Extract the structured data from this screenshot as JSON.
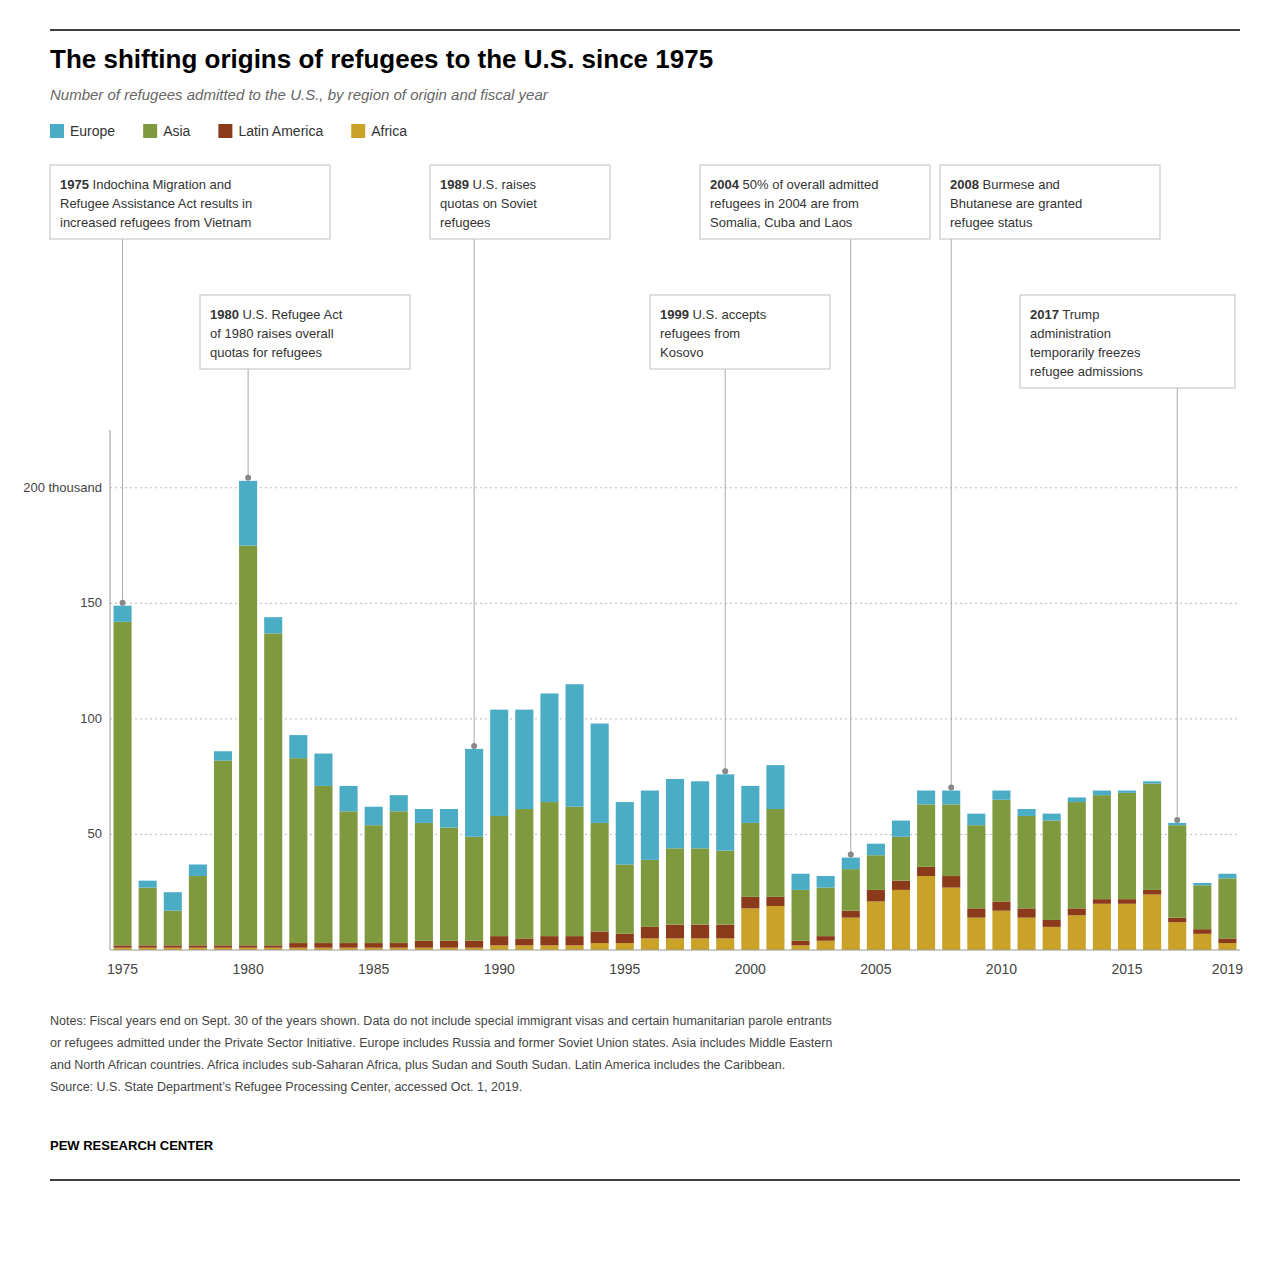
{
  "chart_data": {
    "type": "bar",
    "stacked": true,
    "grid": true,
    "legend": "top-left",
    "title": "The shifting origins of refugees to the U.S. since 1975",
    "subtitle": "Number of refugees admitted to the U.S., by region of origin and fiscal year",
    "categories": [
      "1975",
      null,
      null,
      null,
      null,
      "1980",
      null,
      null,
      null,
      null,
      "1985",
      null,
      null,
      null,
      null,
      "1990",
      null,
      null,
      null,
      null,
      "1995",
      null,
      null,
      null,
      null,
      "2000",
      null,
      null,
      null,
      null,
      "2005",
      null,
      null,
      null,
      null,
      "2010",
      null,
      null,
      null,
      null,
      "2015",
      null,
      null,
      null,
      "2019"
    ],
    "series": [
      {
        "name": "Africa",
        "color": "#C9A227",
        "values": [
          1,
          1,
          1,
          1,
          1,
          1,
          1,
          1,
          1,
          1,
          1,
          1,
          1,
          1,
          1,
          2,
          2,
          2,
          2,
          3,
          3,
          5,
          5,
          5,
          5,
          18,
          19,
          2,
          4,
          14,
          21,
          26,
          32,
          27,
          14,
          17,
          14,
          10,
          15,
          20,
          20,
          24,
          12,
          7,
          3
        ]
      },
      {
        "name": "Latin America",
        "color": "#8B3A1A",
        "values": [
          1,
          1,
          1,
          1,
          1,
          1,
          1,
          2,
          2,
          2,
          2,
          2,
          3,
          3,
          3,
          4,
          3,
          4,
          4,
          5,
          4,
          5,
          6,
          6,
          6,
          5,
          4,
          2,
          2,
          3,
          5,
          4,
          4,
          5,
          4,
          4,
          4,
          3,
          3,
          2,
          2,
          2,
          2,
          2,
          2
        ]
      },
      {
        "name": "Asia",
        "color": "#7F9A3E",
        "values": [
          140,
          25,
          15,
          30,
          80,
          173,
          135,
          80,
          68,
          57,
          51,
          57,
          51,
          49,
          45,
          52,
          56,
          58,
          56,
          47,
          30,
          29,
          33,
          33,
          32,
          32,
          38,
          22,
          21,
          18,
          15,
          19,
          27,
          31,
          36,
          44,
          40,
          43,
          46,
          45,
          46,
          46,
          40,
          19,
          26
        ]
      },
      {
        "name": "Europe",
        "color": "#4BACC6",
        "values": [
          7,
          3,
          8,
          5,
          4,
          28,
          7,
          10,
          14,
          11,
          8,
          7,
          6,
          8,
          38,
          46,
          43,
          47,
          53,
          43,
          27,
          30,
          30,
          29,
          33,
          16,
          19,
          7,
          5,
          5,
          5,
          7,
          6,
          6,
          5,
          4,
          3,
          3,
          2,
          2,
          1,
          1,
          1,
          1,
          2
        ]
      }
    ],
    "ylim": [
      0,
      225
    ],
    "yticks": [
      50,
      100,
      150,
      {
        "value": 200,
        "label": "200 thousand"
      }
    ],
    "annotations": [
      {
        "label": "1975",
        "text": " Indochina Migration and\nRefugee Assistance Act results in\nincreased refugees from Vietnam"
      },
      {
        "label": "1989",
        "text": " U.S. raises\nquotas on Soviet\nrefugees"
      },
      {
        "label": "2004",
        "text": " 50% of overall admitted\nrefugees in 2004 are from\nSomalia, Cuba and Laos"
      },
      {
        "label": "2008",
        "text": " Burmese and\nBhutanese are granted\nrefugee status"
      },
      {
        "label": "1980",
        "text": " U.S. Refugee Act\nof 1980 raises overall\nquotas for refugees"
      },
      {
        "label": "1999",
        "text": " U.S. accepts\nrefugees from\nKosovo"
      },
      {
        "label": "2017",
        "text": " Trump\nadministration\ntemporarily freezes\nrefugee admissions"
      }
    ],
    "notes": [
      "Notes: Fiscal years end on Sept. 30 of the years shown. Data do not include special immigrant visas and certain humanitarian parole entrants",
      "or refugees admitted under the Private Sector Initiative. Europe includes Russia and former Soviet Union states. Asia includes Middle Eastern",
      "and North African countries. Africa includes sub-Saharan Africa, plus Sudan and South Sudan. Latin America includes the Caribbean.",
      "Source: U.S. State Department’s Refugee Processing Center, accessed Oct. 1, 2019."
    ],
    "credit": "PEW RESEARCH CENTER"
  }
}
